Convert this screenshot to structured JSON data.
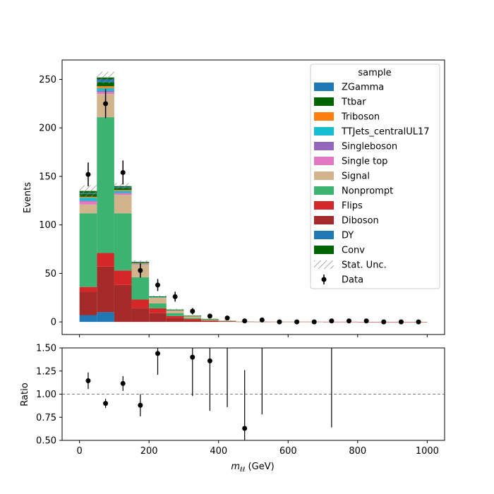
{
  "chart_data": [
    {
      "type": "bar",
      "stacked": true,
      "ylabel": "Events",
      "ylim": [
        -13,
        270
      ],
      "xlim": [
        -50,
        1050
      ],
      "yticks": [
        "0",
        "50",
        "100",
        "150",
        "200",
        "250"
      ],
      "bin_edges": [
        0,
        50,
        100,
        150,
        200,
        250,
        300,
        350,
        400,
        450,
        500,
        550,
        600,
        650,
        700,
        750,
        800,
        850,
        900,
        950,
        1000
      ],
      "series": [
        {
          "name": "DY",
          "color": "#1f77b4",
          "values": [
            7,
            10,
            0,
            0,
            0,
            0,
            0,
            0,
            0,
            0,
            0,
            0,
            0,
            0,
            0,
            0,
            0,
            0,
            0,
            0
          ]
        },
        {
          "name": "Diboson",
          "color": "#a52a2a",
          "values": [
            24,
            47,
            38,
            14,
            9,
            4,
            2,
            1,
            0.5,
            0,
            0,
            0,
            0,
            0,
            0,
            0,
            0,
            0,
            0,
            0
          ]
        },
        {
          "name": "Flips",
          "color": "#d62728",
          "values": [
            5,
            14,
            15,
            9,
            5,
            2,
            1,
            0.5,
            0.3,
            0.3,
            0.2,
            0.2,
            0.2,
            0.2,
            0.2,
            0.2,
            0.1,
            0.1,
            0.1,
            0.1
          ]
        },
        {
          "name": "Nonprompt",
          "color": "#3cb371",
          "values": [
            76,
            140,
            59,
            23,
            5,
            3,
            1,
            0.5,
            0.2,
            0,
            0,
            0,
            0,
            0,
            0,
            0,
            0,
            0,
            0,
            0
          ]
        },
        {
          "name": "Signal",
          "color": "#d2b48c",
          "values": [
            9,
            24,
            19,
            13,
            6,
            3,
            2,
            1,
            0.5,
            0.3,
            0.2,
            0.1,
            0.1,
            0.1,
            0,
            0,
            0,
            0,
            0,
            0
          ]
        },
        {
          "name": "Single top",
          "color": "#e377c2",
          "values": [
            3,
            2,
            1.5,
            0.5,
            0,
            0,
            0,
            0,
            0,
            0,
            0,
            0,
            0,
            0,
            0,
            0,
            0,
            0,
            0,
            0
          ]
        },
        {
          "name": "Singleboson",
          "color": "#9467bd",
          "values": [
            1,
            1,
            0.5,
            0,
            0,
            0,
            0,
            0,
            0,
            0,
            0,
            0,
            0,
            0,
            0,
            0,
            0,
            0,
            0,
            0
          ]
        },
        {
          "name": "TTJets_centralUL17",
          "color": "#17becf",
          "values": [
            3,
            3,
            2,
            0.5,
            0.5,
            0.3,
            0,
            0,
            0,
            0,
            0,
            0,
            0,
            0,
            0,
            0,
            0,
            0,
            0,
            0
          ]
        },
        {
          "name": "Triboson",
          "color": "#ff7f0e",
          "values": [
            1,
            2,
            1,
            0.5,
            0,
            0,
            0,
            0,
            0,
            0,
            0,
            0,
            0,
            0,
            0,
            0,
            0,
            0,
            0,
            0
          ]
        },
        {
          "name": "Ttbar",
          "color": "#006400",
          "values": [
            3,
            4,
            2,
            0.5,
            0.5,
            0.2,
            0.2,
            0,
            0,
            0,
            0,
            0,
            0,
            0,
            0,
            0,
            0,
            0,
            0,
            0
          ]
        },
        {
          "name": "ZGamma",
          "color": "#1f77b4",
          "values": [
            1,
            3,
            1,
            0.5,
            0,
            0,
            0,
            0,
            0,
            0,
            0,
            0,
            0,
            0,
            0,
            0,
            0,
            0,
            0,
            0
          ]
        },
        {
          "name": "Conv",
          "color": "#006400",
          "values": [
            2,
            2,
            1,
            0.5,
            0.3,
            0.2,
            0.2,
            0.1,
            0,
            0,
            0,
            0,
            0,
            0,
            0,
            0,
            0,
            0,
            0,
            0
          ]
        }
      ],
      "stat_unc": [
        6,
        6,
        3,
        1.5,
        1,
        0.8,
        0.6,
        0.4,
        0.3,
        0.2,
        0.2,
        0.1,
        0.1,
        0.1,
        0.1,
        0.1,
        0.1,
        0.1,
        0.1,
        0.1
      ],
      "data_points": {
        "name": "Data",
        "x": [
          25,
          75,
          125,
          175,
          225,
          275,
          325,
          375,
          425,
          475,
          525,
          575,
          625,
          675,
          725,
          775,
          825,
          875,
          925,
          975
        ],
        "y": [
          152,
          225,
          154,
          53,
          38,
          26,
          11,
          6,
          4,
          1,
          2,
          0,
          0,
          0,
          1,
          1,
          1,
          0,
          0,
          0
        ],
        "yerr": [
          12.3,
          15,
          12.4,
          7.3,
          6.2,
          5.1,
          3.3,
          2.4,
          2,
          1,
          1.4,
          0,
          0,
          0,
          1,
          1,
          1,
          0,
          0,
          0
        ]
      },
      "legend": {
        "title": "sample",
        "position": "top-right",
        "entries": [
          "ZGamma",
          "Ttbar",
          "Triboson",
          "TTJets_centralUL17",
          "Singleboson",
          "Single top",
          "Signal",
          "Nonprompt",
          "Flips",
          "Diboson",
          "DY",
          "Conv",
          "Stat. Unc.",
          "Data"
        ]
      }
    },
    {
      "type": "scatter",
      "xlabel_main": "m",
      "xlabel_sub": "ℓℓ",
      "xlabel_unit": " (GeV)",
      "ylabel": "Ratio",
      "ylim": [
        0.5,
        1.5
      ],
      "xlim": [
        -50,
        1050
      ],
      "xticks": [
        "0",
        "200",
        "400",
        "600",
        "800",
        "1000"
      ],
      "yticks": [
        "0.50",
        "0.75",
        "1.00",
        "1.25",
        "1.50"
      ],
      "reference_line": 1.0,
      "x": [
        25,
        75,
        125,
        175,
        225,
        325,
        375,
        425,
        475,
        525,
        725
      ],
      "y": [
        1.145,
        0.9,
        1.115,
        0.88,
        1.44,
        1.4,
        1.36,
        null,
        0.63,
        null,
        null
      ],
      "yerr_low": [
        0.09,
        0.05,
        0.08,
        0.12,
        0.23,
        0.42,
        0.54,
        0.36,
        0.63,
        0.22,
        0.36
      ],
      "yerr_high": [
        0.09,
        0.05,
        0.08,
        0.12,
        0.23,
        0.42,
        0.54,
        0.64,
        0.63,
        0.78,
        0.64
      ],
      "yerr_center": [
        1.145,
        0.9,
        1.115,
        0.88,
        1.44,
        1.4,
        1.36,
        1.22,
        0.63,
        1.0,
        1.0
      ]
    }
  ]
}
